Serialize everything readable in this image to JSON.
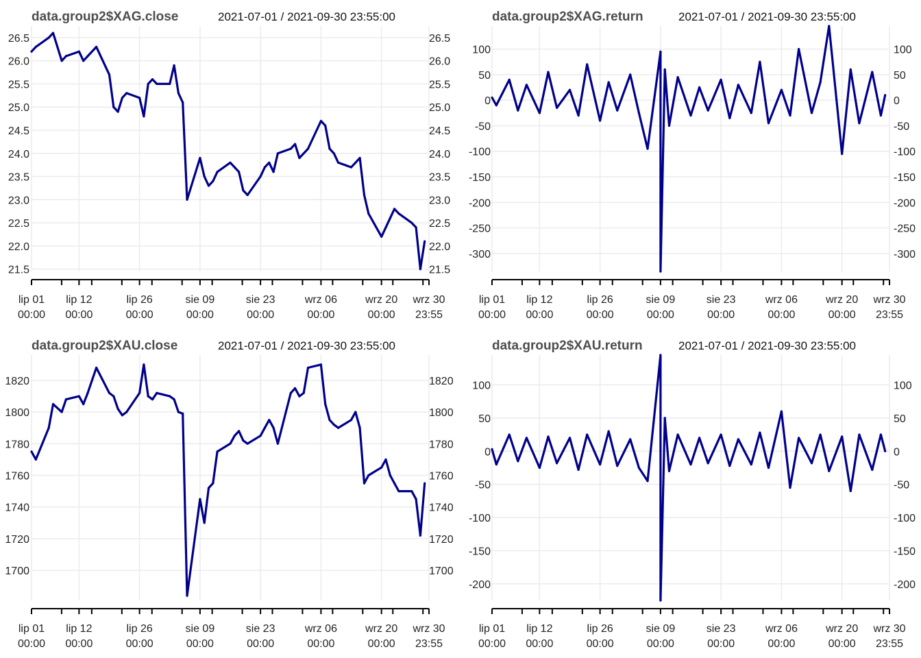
{
  "colors": {
    "series": "#00008b",
    "grid": "#ebebeb",
    "title": "#4d4d4d"
  },
  "chart_data": [
    {
      "type": "line",
      "title": "data.group2$XAG.close",
      "subtitle": "2021-07-01 / 2021-09-30 23:55:00",
      "x_ticks": [
        {
          "top": "lip 01",
          "bottom": "00:00"
        },
        {
          "top": "lip 12",
          "bottom": "00:00"
        },
        {
          "top": "lip 26",
          "bottom": "00:00"
        },
        {
          "top": "sie 09",
          "bottom": "00:00"
        },
        {
          "top": "sie 23",
          "bottom": "00:00"
        },
        {
          "top": "wrz 06",
          "bottom": "00:00"
        },
        {
          "top": "wrz 20",
          "bottom": "00:00"
        },
        {
          "top": "wrz 30",
          "bottom": "23:55"
        }
      ],
      "y_ticks": [
        "21.5",
        "22.0",
        "22.5",
        "23.0",
        "23.5",
        "24.0",
        "24.5",
        "25.0",
        "25.5",
        "26.0",
        "26.5"
      ],
      "ylim": [
        21.45,
        26.75
      ],
      "grid": true,
      "series": [
        {
          "x": [
            "2021-07-01",
            "2021-07-02",
            "2021-07-05",
            "2021-07-06",
            "2021-07-08",
            "2021-07-09",
            "2021-07-12",
            "2021-07-13",
            "2021-07-14",
            "2021-07-16",
            "2021-07-19",
            "2021-07-20",
            "2021-07-21",
            "2021-07-22",
            "2021-07-23",
            "2021-07-26",
            "2021-07-27",
            "2021-07-28",
            "2021-07-29",
            "2021-07-30",
            "2021-08-02",
            "2021-08-03",
            "2021-08-04",
            "2021-08-05",
            "2021-08-06",
            "2021-08-09",
            "2021-08-10",
            "2021-08-11",
            "2021-08-12",
            "2021-08-13",
            "2021-08-16",
            "2021-08-17",
            "2021-08-18",
            "2021-08-19",
            "2021-08-20",
            "2021-08-23",
            "2021-08-24",
            "2021-08-25",
            "2021-08-26",
            "2021-08-27",
            "2021-08-30",
            "2021-08-31",
            "2021-09-01",
            "2021-09-02",
            "2021-09-03",
            "2021-09-06",
            "2021-09-07",
            "2021-09-08",
            "2021-09-09",
            "2021-09-10",
            "2021-09-13",
            "2021-09-14",
            "2021-09-15",
            "2021-09-16",
            "2021-09-17",
            "2021-09-20",
            "2021-09-21",
            "2021-09-22",
            "2021-09-23",
            "2021-09-24",
            "2021-09-27",
            "2021-09-28",
            "2021-09-29",
            "2021-09-30"
          ],
          "values": [
            26.2,
            26.3,
            26.5,
            26.6,
            26.0,
            26.1,
            26.2,
            26.0,
            26.1,
            26.3,
            25.7,
            25.0,
            24.9,
            25.2,
            25.3,
            25.2,
            24.8,
            25.5,
            25.6,
            25.5,
            25.5,
            25.9,
            25.3,
            25.1,
            23.0,
            23.9,
            23.5,
            23.3,
            23.4,
            23.6,
            23.8,
            23.7,
            23.6,
            23.2,
            23.1,
            23.5,
            23.7,
            23.8,
            23.6,
            24.0,
            24.1,
            24.2,
            23.9,
            24.0,
            24.1,
            24.7,
            24.6,
            24.1,
            24.0,
            23.8,
            23.7,
            23.8,
            23.9,
            23.1,
            22.7,
            22.2,
            22.4,
            22.6,
            22.8,
            22.7,
            22.5,
            22.4,
            21.5,
            22.1
          ]
        }
      ]
    },
    {
      "type": "line",
      "title": "data.group2$XAG.return",
      "subtitle": "2021-07-01 / 2021-09-30 23:55:00",
      "x_ticks": [
        {
          "top": "lip 01",
          "bottom": "00:00"
        },
        {
          "top": "lip 12",
          "bottom": "00:00"
        },
        {
          "top": "lip 26",
          "bottom": "00:00"
        },
        {
          "top": "sie 09",
          "bottom": "00:00"
        },
        {
          "top": "sie 23",
          "bottom": "00:00"
        },
        {
          "top": "wrz 06",
          "bottom": "00:00"
        },
        {
          "top": "wrz 20",
          "bottom": "00:00"
        },
        {
          "top": "wrz 30",
          "bottom": "23:55"
        }
      ],
      "y_ticks": [
        "-300",
        "-250",
        "-200",
        "-150",
        "-100",
        "-50",
        "0",
        "50",
        "100"
      ],
      "ylim": [
        -335,
        145
      ],
      "grid": true,
      "series": [
        {
          "x": [
            "2021-07-01",
            "2021-07-02",
            "2021-07-05",
            "2021-07-07",
            "2021-07-09",
            "2021-07-12",
            "2021-07-14",
            "2021-07-16",
            "2021-07-19",
            "2021-07-21",
            "2021-07-23",
            "2021-07-26",
            "2021-07-28",
            "2021-07-30",
            "2021-08-02",
            "2021-08-04",
            "2021-08-06",
            "2021-08-09",
            "2021-08-09",
            "2021-08-10",
            "2021-08-11",
            "2021-08-13",
            "2021-08-16",
            "2021-08-18",
            "2021-08-20",
            "2021-08-23",
            "2021-08-25",
            "2021-08-27",
            "2021-08-30",
            "2021-09-01",
            "2021-09-03",
            "2021-09-06",
            "2021-09-08",
            "2021-09-10",
            "2021-09-13",
            "2021-09-15",
            "2021-09-17",
            "2021-09-20",
            "2021-09-22",
            "2021-09-24",
            "2021-09-27",
            "2021-09-29",
            "2021-09-30"
          ],
          "values": [
            5,
            -10,
            40,
            -20,
            30,
            -25,
            55,
            -15,
            20,
            -30,
            70,
            -40,
            35,
            -20,
            50,
            -25,
            -95,
            95,
            -335,
            60,
            -50,
            45,
            -30,
            25,
            -20,
            40,
            -35,
            30,
            -25,
            75,
            -45,
            20,
            -30,
            100,
            -25,
            35,
            145,
            -105,
            60,
            -45,
            55,
            -30,
            10
          ]
        }
      ]
    },
    {
      "type": "line",
      "title": "data.group2$XAU.close",
      "subtitle": "2021-07-01 / 2021-09-30 23:55:00",
      "x_ticks": [
        {
          "top": "lip 01",
          "bottom": "00:00"
        },
        {
          "top": "lip 12",
          "bottom": "00:00"
        },
        {
          "top": "lip 26",
          "bottom": "00:00"
        },
        {
          "top": "sie 09",
          "bottom": "00:00"
        },
        {
          "top": "sie 23",
          "bottom": "00:00"
        },
        {
          "top": "wrz 06",
          "bottom": "00:00"
        },
        {
          "top": "wrz 20",
          "bottom": "00:00"
        },
        {
          "top": "wrz 30",
          "bottom": "23:55"
        }
      ],
      "y_ticks": [
        "1700",
        "1720",
        "1740",
        "1760",
        "1780",
        "1800",
        "1820"
      ],
      "ylim": [
        1681,
        1836
      ],
      "grid": true,
      "series": [
        {
          "x": [
            "2021-07-01",
            "2021-07-02",
            "2021-07-05",
            "2021-07-06",
            "2021-07-08",
            "2021-07-09",
            "2021-07-12",
            "2021-07-13",
            "2021-07-14",
            "2021-07-16",
            "2021-07-19",
            "2021-07-20",
            "2021-07-21",
            "2021-07-22",
            "2021-07-23",
            "2021-07-26",
            "2021-07-27",
            "2021-07-28",
            "2021-07-29",
            "2021-07-30",
            "2021-08-02",
            "2021-08-03",
            "2021-08-04",
            "2021-08-05",
            "2021-08-06",
            "2021-08-09",
            "2021-08-10",
            "2021-08-11",
            "2021-08-12",
            "2021-08-13",
            "2021-08-16",
            "2021-08-17",
            "2021-08-18",
            "2021-08-19",
            "2021-08-20",
            "2021-08-23",
            "2021-08-24",
            "2021-08-25",
            "2021-08-26",
            "2021-08-27",
            "2021-08-30",
            "2021-08-31",
            "2021-09-01",
            "2021-09-02",
            "2021-09-03",
            "2021-09-06",
            "2021-09-07",
            "2021-09-08",
            "2021-09-09",
            "2021-09-10",
            "2021-09-13",
            "2021-09-14",
            "2021-09-15",
            "2021-09-16",
            "2021-09-17",
            "2021-09-20",
            "2021-09-21",
            "2021-09-22",
            "2021-09-23",
            "2021-09-24",
            "2021-09-27",
            "2021-09-28",
            "2021-09-29",
            "2021-09-30"
          ],
          "values": [
            1775,
            1770,
            1790,
            1805,
            1800,
            1808,
            1810,
            1805,
            1812,
            1828,
            1812,
            1810,
            1802,
            1798,
            1800,
            1812,
            1830,
            1810,
            1808,
            1812,
            1810,
            1808,
            1800,
            1799,
            1684,
            1745,
            1730,
            1752,
            1755,
            1775,
            1780,
            1785,
            1788,
            1782,
            1780,
            1785,
            1790,
            1795,
            1790,
            1780,
            1812,
            1815,
            1810,
            1812,
            1828,
            1830,
            1805,
            1795,
            1792,
            1790,
            1795,
            1800,
            1790,
            1755,
            1760,
            1765,
            1770,
            1760,
            1755,
            1750,
            1750,
            1745,
            1722,
            1755
          ]
        }
      ]
    },
    {
      "type": "line",
      "title": "data.group2$XAU.return",
      "subtitle": "2021-07-01 / 2021-09-30 23:55:00",
      "x_ticks": [
        {
          "top": "lip 01",
          "bottom": "00:00"
        },
        {
          "top": "lip 12",
          "bottom": "00:00"
        },
        {
          "top": "lip 26",
          "bottom": "00:00"
        },
        {
          "top": "sie 09",
          "bottom": "00:00"
        },
        {
          "top": "sie 23",
          "bottom": "00:00"
        },
        {
          "top": "wrz 06",
          "bottom": "00:00"
        },
        {
          "top": "wrz 20",
          "bottom": "00:00"
        },
        {
          "top": "wrz 30",
          "bottom": "23:55"
        }
      ],
      "y_ticks": [
        "-200",
        "-150",
        "-100",
        "-50",
        "0",
        "50",
        "100"
      ],
      "ylim": [
        -225,
        145
      ],
      "grid": true,
      "series": [
        {
          "x": [
            "2021-07-01",
            "2021-07-02",
            "2021-07-05",
            "2021-07-07",
            "2021-07-09",
            "2021-07-12",
            "2021-07-14",
            "2021-07-16",
            "2021-07-19",
            "2021-07-21",
            "2021-07-23",
            "2021-07-26",
            "2021-07-28",
            "2021-07-30",
            "2021-08-02",
            "2021-08-04",
            "2021-08-06",
            "2021-08-09",
            "2021-08-09",
            "2021-08-10",
            "2021-08-11",
            "2021-08-13",
            "2021-08-16",
            "2021-08-18",
            "2021-08-20",
            "2021-08-23",
            "2021-08-25",
            "2021-08-27",
            "2021-08-30",
            "2021-09-01",
            "2021-09-03",
            "2021-09-06",
            "2021-09-08",
            "2021-09-10",
            "2021-09-13",
            "2021-09-15",
            "2021-09-17",
            "2021-09-20",
            "2021-09-22",
            "2021-09-24",
            "2021-09-27",
            "2021-09-29",
            "2021-09-30"
          ],
          "values": [
            3,
            -20,
            25,
            -15,
            20,
            -25,
            22,
            -18,
            20,
            -28,
            25,
            -20,
            30,
            -22,
            18,
            -25,
            -45,
            145,
            -225,
            50,
            -30,
            25,
            -20,
            20,
            -18,
            25,
            -22,
            18,
            -20,
            28,
            -25,
            60,
            -55,
            20,
            -18,
            25,
            -30,
            22,
            -60,
            25,
            -28,
            25,
            0
          ]
        }
      ]
    }
  ]
}
